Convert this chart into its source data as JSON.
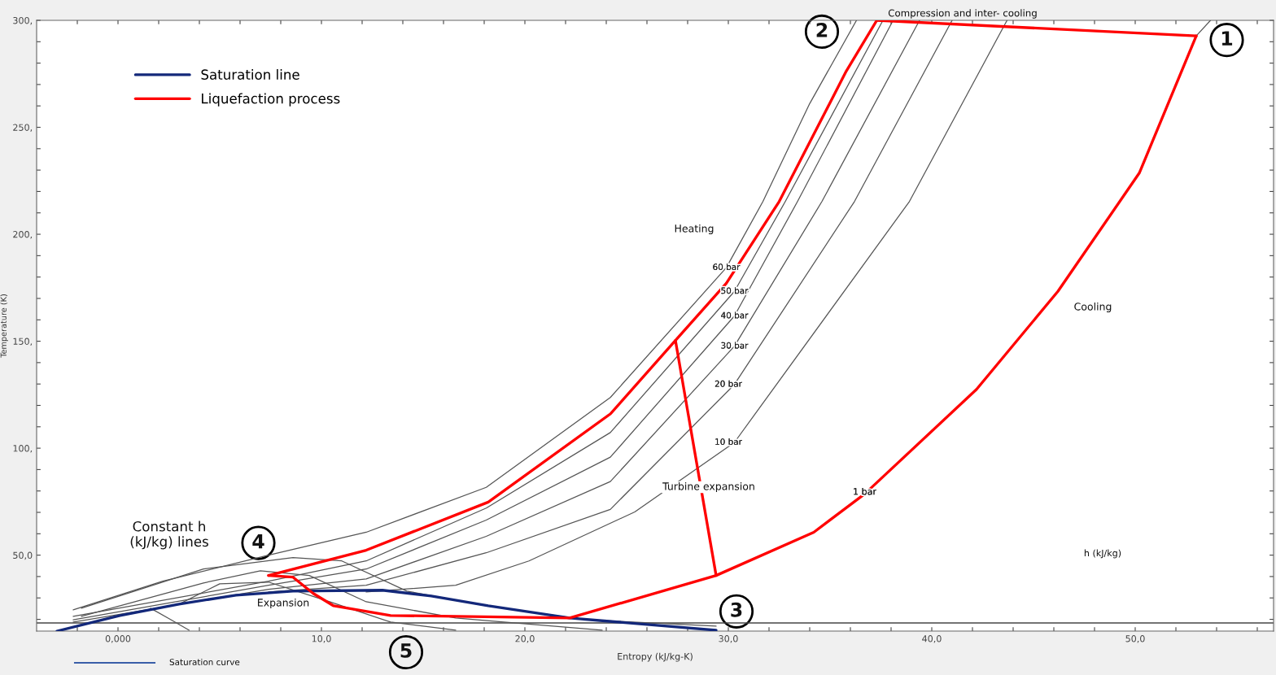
{
  "chart_data": {
    "type": "line",
    "xlabel": "Entropy (kJ/kg-K)",
    "ylabel": "Temperature (K)",
    "xlim": [
      -4,
      56.8
    ],
    "ylim": [
      14.5,
      300
    ],
    "xticks": [
      {
        "value": -2,
        "label": null
      },
      {
        "value": 0,
        "label": "0,000"
      },
      {
        "value": 2,
        "label": null
      },
      {
        "value": 4,
        "label": null
      },
      {
        "value": 6,
        "label": null
      },
      {
        "value": 8,
        "label": null
      },
      {
        "value": 10,
        "label": "10,0"
      },
      {
        "value": 12,
        "label": null
      },
      {
        "value": 14,
        "label": null
      },
      {
        "value": 16,
        "label": null
      },
      {
        "value": 18,
        "label": null
      },
      {
        "value": 20,
        "label": "20,0"
      },
      {
        "value": 22,
        "label": null
      },
      {
        "value": 24,
        "label": null
      },
      {
        "value": 26,
        "label": null
      },
      {
        "value": 28,
        "label": null
      },
      {
        "value": 30,
        "label": "30,0"
      },
      {
        "value": 32,
        "label": null
      },
      {
        "value": 34,
        "label": null
      },
      {
        "value": 36,
        "label": null
      },
      {
        "value": 38,
        "label": null
      },
      {
        "value": 40,
        "label": "40,0"
      },
      {
        "value": 42,
        "label": null
      },
      {
        "value": 44,
        "label": null
      },
      {
        "value": 46,
        "label": null
      },
      {
        "value": 48,
        "label": null
      },
      {
        "value": 50,
        "label": "50,0"
      },
      {
        "value": 52,
        "label": null
      },
      {
        "value": 54,
        "label": null
      },
      {
        "value": 56,
        "label": null
      }
    ],
    "yticks": [
      {
        "value": 20,
        "label": null
      },
      {
        "value": 30,
        "label": null
      },
      {
        "value": 40,
        "label": null
      },
      {
        "value": 50,
        "label": "50,0"
      },
      {
        "value": 60,
        "label": null
      },
      {
        "value": 70,
        "label": null
      },
      {
        "value": 80,
        "label": null
      },
      {
        "value": 90,
        "label": null
      },
      {
        "value": 100,
        "label": "100,"
      },
      {
        "value": 110,
        "label": null
      },
      {
        "value": 120,
        "label": null
      },
      {
        "value": 130,
        "label": null
      },
      {
        "value": 140,
        "label": null
      },
      {
        "value": 150,
        "label": "150,"
      },
      {
        "value": 160,
        "label": null
      },
      {
        "value": 170,
        "label": null
      },
      {
        "value": 180,
        "label": null
      },
      {
        "value": 190,
        "label": null
      },
      {
        "value": 200,
        "label": "200,"
      },
      {
        "value": 210,
        "label": null
      },
      {
        "value": 220,
        "label": null
      },
      {
        "value": 230,
        "label": null
      },
      {
        "value": 240,
        "label": null
      },
      {
        "value": 250,
        "label": "250,"
      },
      {
        "value": 260,
        "label": null
      },
      {
        "value": 270,
        "label": null
      },
      {
        "value": 280,
        "label": null
      },
      {
        "value": 290,
        "label": null
      },
      {
        "value": 300,
        "label": "300,"
      }
    ],
    "grid": false,
    "legend": "top left",
    "marker": "none",
    "line_style": "solid",
    "ref_lines": [
      {
        "axis": "y",
        "value": 18.3,
        "color": "#444444"
      }
    ],
    "series": [
      {
        "color": "#555555",
        "x": [
          36.3,
          34.0,
          31.7,
          29.9,
          24.2,
          18.1,
          12.2,
          7.4,
          2.2,
          -2.2
        ],
        "values": [
          300,
          261.1,
          215.3,
          184.4,
          123.7,
          81.7,
          60.7,
          50,
          37.8,
          24.4
        ]
      },
      {
        "color": "#555555",
        "x": [
          37.6,
          32.8,
          30.3,
          24.2,
          18.1,
          12.2,
          7.4,
          -2.2
        ],
        "values": [
          300,
          215.3,
          173.3,
          107.3,
          72,
          47.3,
          37.8,
          21.4
        ]
      },
      {
        "color": "#555555",
        "x": [
          38.1,
          33.4,
          30.3,
          24.2,
          18.1,
          12.2,
          7.4,
          -2.2
        ],
        "values": [
          300,
          215.3,
          161.8,
          95.8,
          66.4,
          43.5,
          35.9,
          19.8
        ]
      },
      {
        "color": "#555555",
        "x": [
          39.4,
          34.6,
          30.3,
          24.2,
          18.1,
          12.2,
          7.4,
          -2.2
        ],
        "values": [
          300,
          215.3,
          147.7,
          84.4,
          58.8,
          38.9,
          34,
          18.7
        ]
      },
      {
        "color": "#555555",
        "x": [
          41,
          36.2,
          30.3,
          24.2,
          18.1,
          12.2,
          7.4
        ],
        "values": [
          300,
          215.3,
          129.8,
          71.4,
          51.1,
          35.9,
          32.8
        ]
      },
      {
        "color": "#555555",
        "x": [
          43.7,
          38.9,
          30.3,
          25.4,
          20.2,
          16.6,
          12.2
        ],
        "values": [
          300,
          215.3,
          102.7,
          70.2,
          47.3,
          35.9,
          32.8
        ]
      },
      {
        "color": "#555555",
        "x": [
          53,
          53.7
        ],
        "values": [
          292.7,
          300
        ]
      },
      {
        "color": "#555555",
        "x": [
          -1.8,
          4.2,
          8.6,
          11,
          14.2,
          18.1,
          23,
          29.4
        ],
        "values": [
          25.2,
          43.5,
          48.9,
          47.3,
          33.2,
          26.3,
          19.8,
          16.8
        ]
      },
      {
        "color": "#555555",
        "x": [
          -1.8,
          4.2,
          7,
          9.4,
          12.2,
          16.6,
          23.8
        ],
        "values": [
          21.4,
          37,
          42.7,
          40.5,
          28.2,
          20.6,
          14.9
        ]
      },
      {
        "color": "#555555",
        "x": [
          3,
          5,
          7.4,
          10.4,
          13.4,
          16.6
        ],
        "values": [
          27.1,
          36.6,
          37.4,
          28.2,
          18.7,
          14.9
        ]
      },
      {
        "color": "#555555",
        "x": [
          1.6,
          2.6,
          3.5
        ],
        "values": [
          25.2,
          19.8,
          14.9
        ]
      },
      {
        "name": "Saturation line",
        "color": "#13287a",
        "x": [
          -3,
          0.1,
          3,
          5.8,
          8.6,
          13,
          15.4,
          18.2,
          22.2,
          29.4
        ],
        "values": [
          14.5,
          21.8,
          27.1,
          31.3,
          33.2,
          33.6,
          30.9,
          26.3,
          20.6,
          14.9
        ]
      },
      {
        "name": "Liquefaction process",
        "color": "#ff0000",
        "x": [
          37.3,
          35.8,
          32.5,
          29.9,
          27.4,
          24.2,
          18.2,
          12.2,
          7.4
        ],
        "values": [
          300,
          276.3,
          215.3,
          177.1,
          150.4,
          116,
          74.8,
          52.3,
          40.5
        ]
      },
      {
        "color": "#ff0000",
        "x": [
          7.4,
          8.6,
          9.6,
          10.6,
          13.4,
          22.2,
          29.4,
          34.2,
          36.7,
          42.2,
          46.2,
          50.2,
          53
        ],
        "values": [
          40.5,
          39.7,
          32.1,
          26.3,
          21.8,
          20.6,
          40.5,
          60.7,
          78.6,
          127.5,
          173.3,
          228.6,
          292.7
        ]
      },
      {
        "color": "#ff0000",
        "x": [
          53,
          37.3
        ],
        "values": [
          292.7,
          300
        ]
      },
      {
        "color": "#ff0000",
        "x": [
          27.4,
          29.4
        ],
        "values": [
          150.4,
          40.5
        ]
      }
    ],
    "annotations": [
      "Compression and inter- cooling",
      "Heating",
      "Cooling",
      "Turbine expansion",
      "Expansion",
      "Constant h\n(kJ/kg) lines",
      "h (kJ/kg)",
      {
        "text": "60 bar",
        "x": 29.9,
        "y": 184.4
      },
      {
        "text": "50 bar",
        "x": 30.3,
        "y": 173.3
      },
      {
        "text": "40 bar",
        "x": 30.3,
        "y": 161.8
      },
      {
        "text": "30 bar",
        "x": 30.3,
        "y": 147.7
      },
      {
        "text": "20 bar",
        "x": 30,
        "y": 129.8
      },
      {
        "text": "10 bar",
        "x": 30,
        "y": 102.7
      },
      {
        "text": "1 bar",
        "x": 36.7,
        "y": 79.4
      },
      {
        "text": "1",
        "x": 54.5,
        "y": 290.8
      },
      {
        "text": "2",
        "x": 34.6,
        "y": 294.7
      },
      {
        "text": "3",
        "x": 30.4,
        "y": 23.7
      },
      {
        "text": "4",
        "x": 6.9,
        "y": 55.7
      },
      "5",
      "Saturation curve"
    ]
  }
}
